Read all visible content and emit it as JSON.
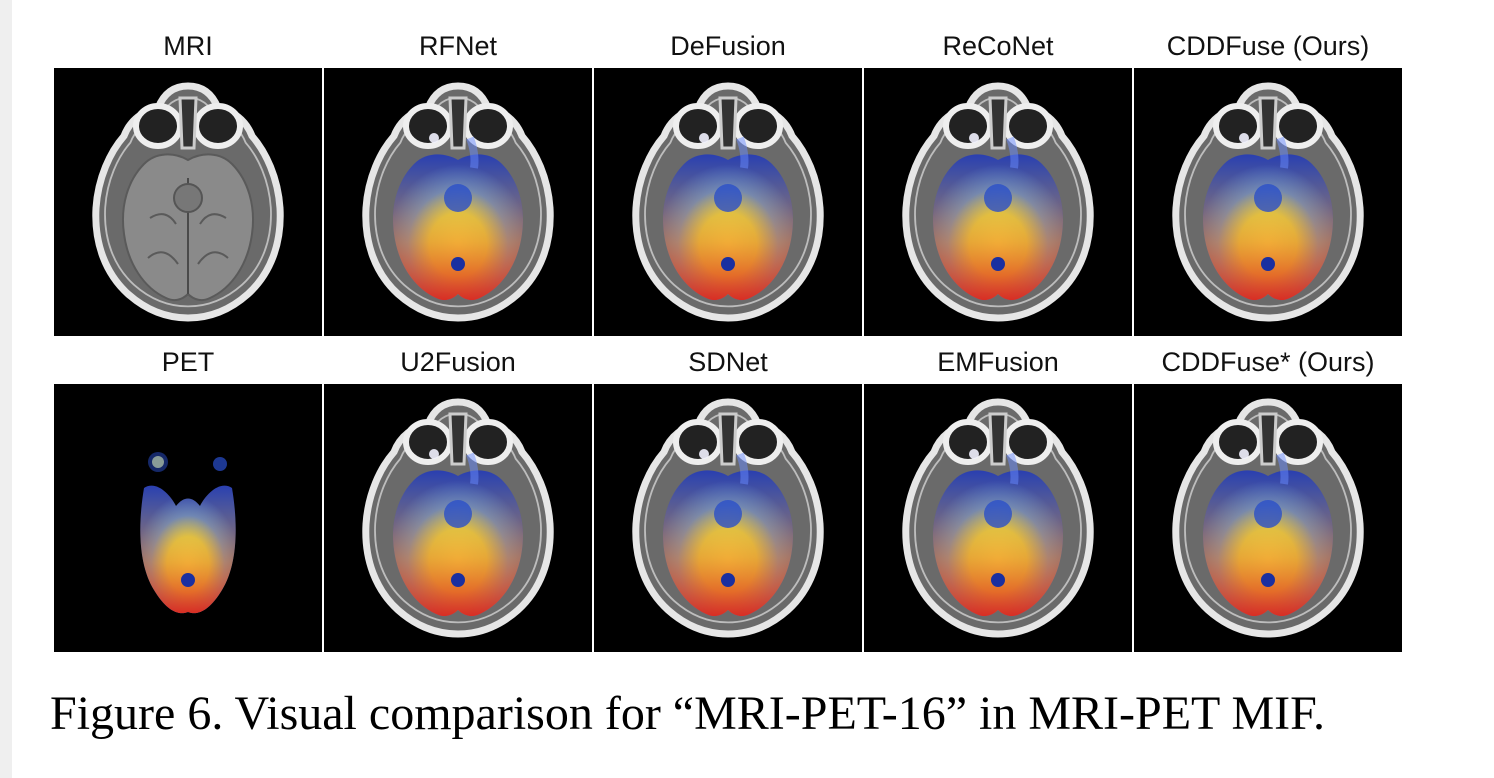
{
  "figure": {
    "caption": "Figure 6. Visual comparison for “MRI-PET-16” in MRI-PET MIF.",
    "panels": [
      {
        "label": "MRI",
        "kind": "mri"
      },
      {
        "label": "RFNet",
        "kind": "fused"
      },
      {
        "label": "DeFusion",
        "kind": "fused"
      },
      {
        "label": "ReCoNet",
        "kind": "fused"
      },
      {
        "label": "CDDFuse (Ours)",
        "kind": "fused"
      },
      {
        "label": "PET",
        "kind": "pet"
      },
      {
        "label": "U2Fusion",
        "kind": "fused"
      },
      {
        "label": "SDNet",
        "kind": "fused"
      },
      {
        "label": "EMFusion",
        "kind": "fused"
      },
      {
        "label": "CDDFuse* (Ours)",
        "kind": "fused"
      }
    ]
  }
}
